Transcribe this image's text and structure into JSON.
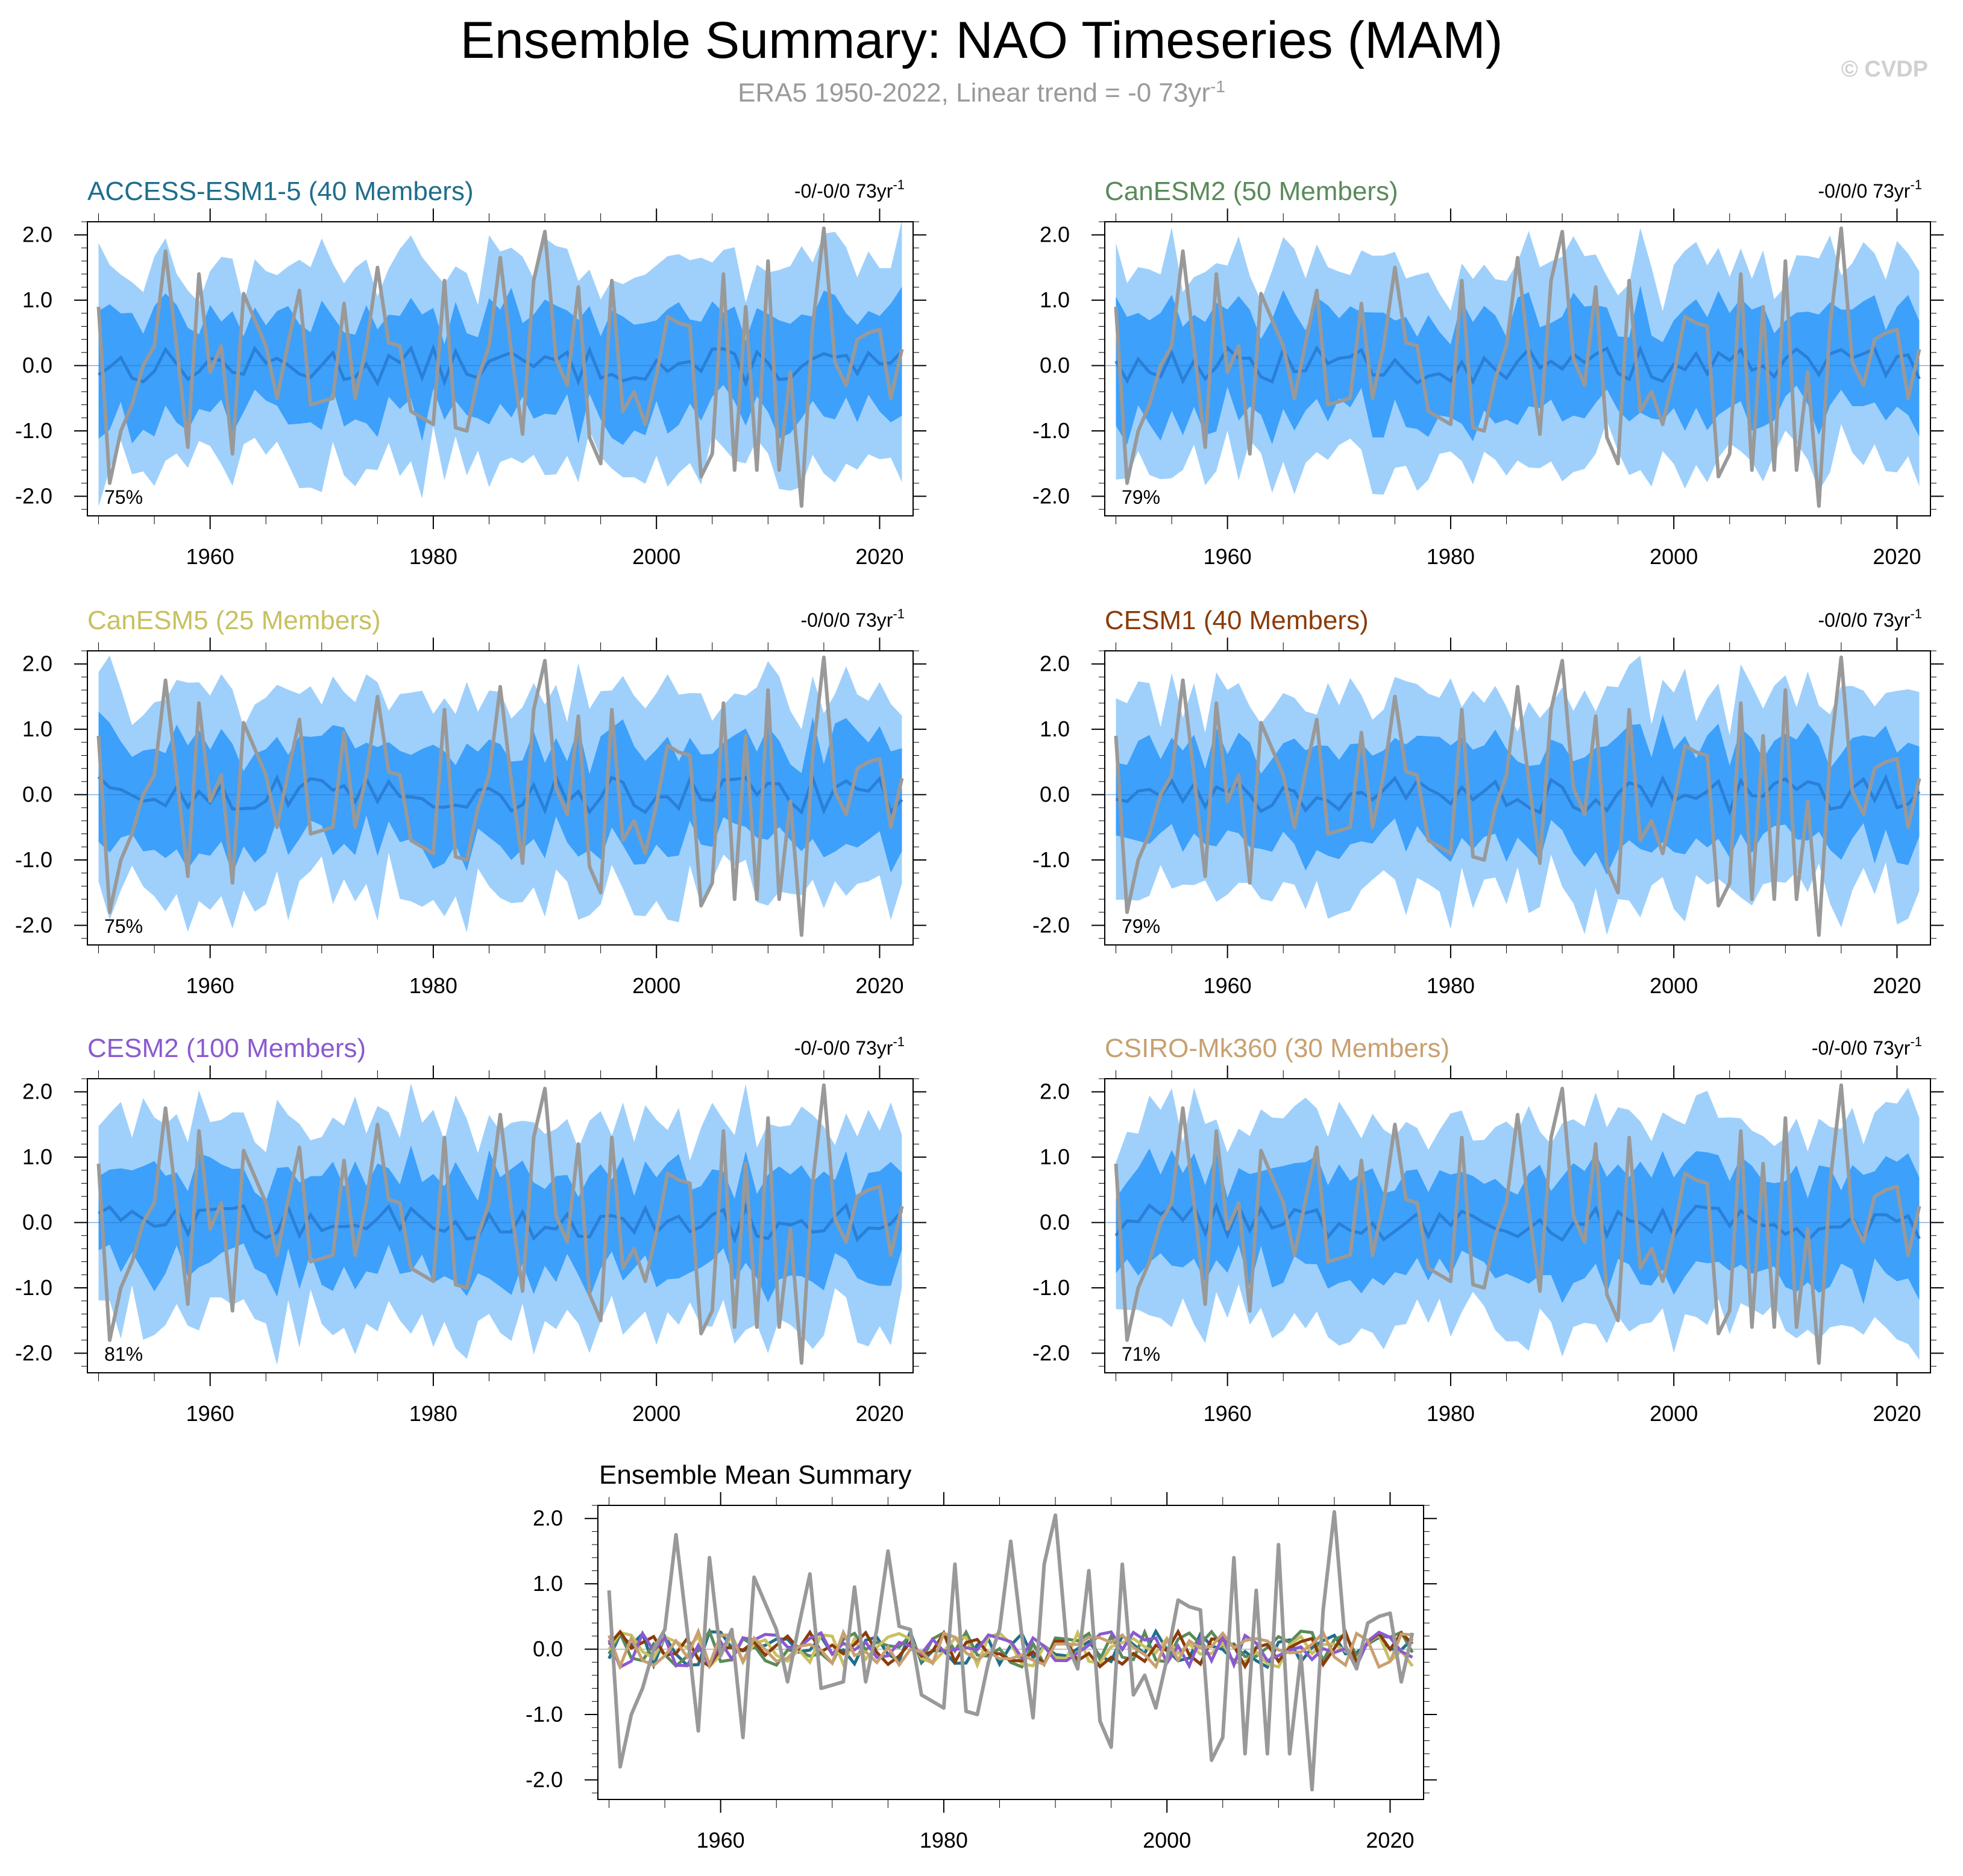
{
  "title": "Ensemble Summary: NAO Timeseries (MAM)",
  "subtitle": {
    "text": "ERA5 1950-2022, Linear trend = -0 73yr",
    "sup": "-1"
  },
  "watermark": "© CVDP",
  "colors": {
    "obs": "#999999",
    "mean_line": "#2a7fd6",
    "band_inner": "#3da0fb",
    "band_outer": "#9fd0fb",
    "ACCESS-ESM1-5": "#1f6e8c",
    "CanESM2": "#5a8a5a",
    "CanESM5": "#c8c060",
    "CESM1": "#8a3c0a",
    "CESM2": "#8a5ad0",
    "CSIRO-Mk360": "#c8a070"
  },
  "chart_data": [
    {
      "type": "line",
      "model": "ACCESS-ESM1-5",
      "title": "ACCESS-ESM1-5 (40 Members)",
      "trend_text": "-0/-0/0 73yr",
      "trend_sup": "-1",
      "percent_label": "75%",
      "ylim": [
        -2.3,
        2.2
      ],
      "xlim": [
        1949,
        2023
      ],
      "yticks": [
        "2.0",
        "1.0",
        "0.0",
        "-1.0",
        "-2.0"
      ],
      "xticks": [
        "1960",
        "1980",
        "2000",
        "2020"
      ]
    },
    {
      "type": "line",
      "model": "CanESM2",
      "title": "CanESM2 (50 Members)",
      "trend_text": "-0/0/0 73yr",
      "trend_sup": "-1",
      "percent_label": "79%",
      "ylim": [
        -2.3,
        2.2
      ],
      "xlim": [
        1949,
        2023
      ],
      "yticks": [
        "2.0",
        "1.0",
        "0.0",
        "-1.0",
        "-2.0"
      ],
      "xticks": [
        "1960",
        "1980",
        "2000",
        "2020"
      ]
    },
    {
      "type": "line",
      "model": "CanESM5",
      "title": "CanESM5 (25 Members)",
      "trend_text": "-0/0/0 73yr",
      "trend_sup": "-1",
      "percent_label": "75%",
      "ylim": [
        -2.3,
        2.2
      ],
      "xlim": [
        1949,
        2023
      ],
      "yticks": [
        "2.0",
        "1.0",
        "0.0",
        "-1.0",
        "-2.0"
      ],
      "xticks": [
        "1960",
        "1980",
        "2000",
        "2020"
      ]
    },
    {
      "type": "line",
      "model": "CESM1",
      "title": "CESM1 (40 Members)",
      "trend_text": "-0/0/0 73yr",
      "trend_sup": "-1",
      "percent_label": "79%",
      "ylim": [
        -2.3,
        2.2
      ],
      "xlim": [
        1949,
        2023
      ],
      "yticks": [
        "2.0",
        "1.0",
        "0.0",
        "-1.0",
        "-2.0"
      ],
      "xticks": [
        "1960",
        "1980",
        "2000",
        "2020"
      ]
    },
    {
      "type": "line",
      "model": "CESM2",
      "title": "CESM2 (100 Members)",
      "trend_text": "-0/-0/0 73yr",
      "trend_sup": "-1",
      "percent_label": "81%",
      "ylim": [
        -2.3,
        2.2
      ],
      "xlim": [
        1949,
        2023
      ],
      "yticks": [
        "2.0",
        "1.0",
        "0.0",
        "-1.0",
        "-2.0"
      ],
      "xticks": [
        "1960",
        "1980",
        "2000",
        "2020"
      ]
    },
    {
      "type": "line",
      "model": "CSIRO-Mk360",
      "title": "CSIRO-Mk360 (30 Members)",
      "trend_text": "-0/-0/0 73yr",
      "trend_sup": "-1",
      "percent_label": "71%",
      "ylim": [
        -2.3,
        2.2
      ],
      "xlim": [
        1949,
        2023
      ],
      "yticks": [
        "2.0",
        "1.0",
        "0.0",
        "-1.0",
        "-2.0"
      ],
      "xticks": [
        "1960",
        "1980",
        "2000",
        "2020"
      ]
    },
    {
      "type": "line",
      "model": "summary",
      "title": "Ensemble Mean Summary",
      "ylim": [
        -2.3,
        2.2
      ],
      "xlim": [
        1949,
        2023
      ],
      "yticks": [
        "2.0",
        "1.0",
        "0.0",
        "-1.0",
        "-2.0"
      ],
      "xticks": [
        "1960",
        "1980",
        "2000",
        "2020"
      ]
    }
  ],
  "observed": {
    "name": "ERA5",
    "years": [
      1950,
      1951,
      1952,
      1953,
      1954,
      1955,
      1956,
      1957,
      1958,
      1959,
      1960,
      1961,
      1962,
      1963,
      1964,
      1965,
      1966,
      1967,
      1968,
      1969,
      1970,
      1971,
      1972,
      1973,
      1974,
      1975,
      1976,
      1977,
      1978,
      1979,
      1980,
      1981,
      1982,
      1983,
      1984,
      1985,
      1986,
      1987,
      1988,
      1989,
      1990,
      1991,
      1992,
      1993,
      1994,
      1995,
      1996,
      1997,
      1998,
      1999,
      2000,
      2001,
      2002,
      2003,
      2004,
      2005,
      2006,
      2007,
      2008,
      2009,
      2010,
      2011,
      2012,
      2013,
      2014,
      2015,
      2016,
      2017,
      2018,
      2019,
      2020,
      2021,
      2022
    ],
    "values": [
      0.9,
      -1.8,
      -1.0,
      -0.6,
      0.0,
      0.3,
      1.75,
      0.3,
      -1.25,
      1.4,
      -0.1,
      0.3,
      -1.35,
      1.1,
      0.7,
      0.3,
      -0.5,
      0.35,
      1.15,
      -0.6,
      -0.55,
      -0.5,
      0.95,
      -0.5,
      0.3,
      1.5,
      0.35,
      0.3,
      -0.7,
      -0.8,
      -0.9,
      1.3,
      -0.95,
      -1.0,
      -0.2,
      0.3,
      1.65,
      0.2,
      -1.05,
      1.3,
      2.05,
      0.1,
      -0.3,
      1.2,
      -1.1,
      -1.5,
      1.3,
      -0.7,
      -0.4,
      -0.9,
      -0.15,
      0.75,
      0.65,
      0.6,
      -1.7,
      -1.35,
      1.4,
      -1.6,
      0.9,
      -1.6,
      1.6,
      -1.6,
      -0.1,
      -2.15,
      0.6,
      2.1,
      0.05,
      -0.3,
      0.4,
      0.5,
      0.55,
      -0.5,
      0.25
    ]
  }
}
